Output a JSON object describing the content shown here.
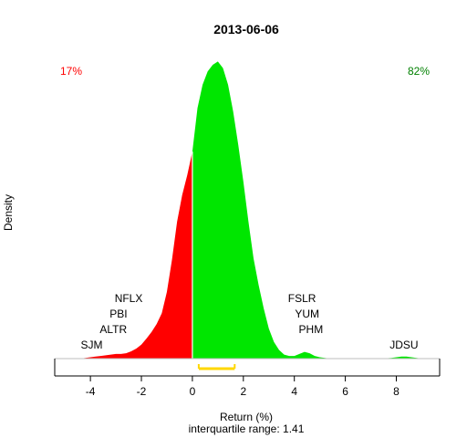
{
  "chart_data": {
    "type": "area",
    "title": "2013-06-06",
    "xlabel": "Return (%)",
    "ylabel": "Density",
    "subtitle": "interquartile range: 1.41",
    "xlim": [
      -5.4,
      9.7
    ],
    "ylim": [
      0,
      0.455
    ],
    "x_ticks": [
      -4,
      -2,
      0,
      2,
      4,
      6,
      8
    ],
    "x_tick_labels": [
      "-4",
      "-2",
      "0",
      "2",
      "4",
      "6",
      "8"
    ],
    "split_at": 0,
    "negative_share_label": "17%",
    "positive_share_label": "82%",
    "colors": {
      "negative": "#ff0000",
      "positive": "#00e600",
      "iqr": "#ffd700",
      "negative_text": "#ff0000",
      "positive_text": "#008000"
    },
    "density": {
      "x": [
        -4.4,
        -4.2,
        -4.0,
        -3.8,
        -3.6,
        -3.4,
        -3.2,
        -3.0,
        -2.8,
        -2.6,
        -2.4,
        -2.2,
        -2.0,
        -1.8,
        -1.6,
        -1.4,
        -1.2,
        -1.0,
        -0.8,
        -0.6,
        -0.4,
        -0.2,
        0.0,
        0.2,
        0.4,
        0.6,
        0.8,
        1.0,
        1.2,
        1.4,
        1.6,
        1.8,
        2.0,
        2.2,
        2.4,
        2.6,
        2.8,
        3.0,
        3.2,
        3.4,
        3.6,
        3.8,
        4.0,
        4.2,
        4.4,
        4.6,
        4.8,
        5.0,
        5.2,
        5.4,
        5.8,
        6.2,
        6.6,
        7.0,
        7.4,
        7.8,
        8.0,
        8.2,
        8.4,
        8.6,
        8.8,
        9.0
      ],
      "y": [
        0.0,
        0.001,
        0.002,
        0.003,
        0.004,
        0.005,
        0.006,
        0.007,
        0.007,
        0.008,
        0.011,
        0.015,
        0.021,
        0.03,
        0.04,
        0.052,
        0.068,
        0.1,
        0.148,
        0.205,
        0.245,
        0.275,
        0.31,
        0.375,
        0.41,
        0.43,
        0.44,
        0.445,
        0.435,
        0.41,
        0.37,
        0.32,
        0.265,
        0.205,
        0.15,
        0.11,
        0.075,
        0.045,
        0.025,
        0.013,
        0.006,
        0.004,
        0.004,
        0.007,
        0.01,
        0.008,
        0.004,
        0.002,
        0.001,
        0.0,
        0.0,
        0.0,
        0.0,
        0.0,
        0.0,
        0.001,
        0.002,
        0.003,
        0.003,
        0.002,
        0.001,
        0.0
      ]
    },
    "iqr": [
      0.25,
      1.66
    ],
    "annotations": [
      {
        "label": "NFLX",
        "x": -2.5,
        "level": 4
      },
      {
        "label": "PBI",
        "x": -2.9,
        "level": 3
      },
      {
        "label": "ALTR",
        "x": -3.1,
        "level": 2
      },
      {
        "label": "SJM",
        "x": -3.95,
        "level": 1
      },
      {
        "label": "FSLR",
        "x": 4.3,
        "level": 4
      },
      {
        "label": "YUM",
        "x": 4.5,
        "level": 3
      },
      {
        "label": "PHM",
        "x": 4.65,
        "level": 2
      },
      {
        "label": "JDSU",
        "x": 8.3,
        "level": 1
      }
    ]
  }
}
